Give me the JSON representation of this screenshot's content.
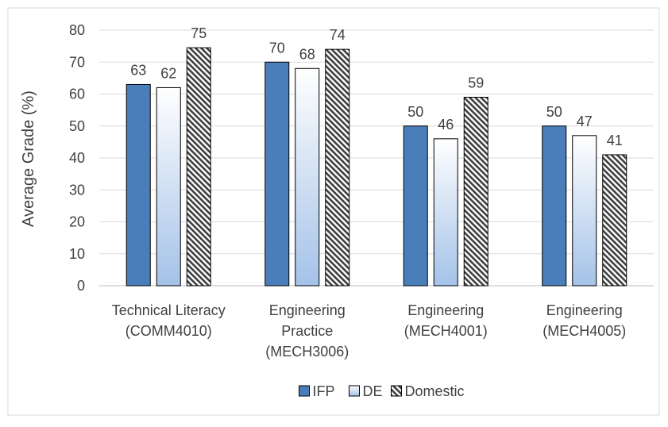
{
  "chart_data": {
    "type": "bar",
    "ylabel": "Average Grade (%)",
    "ylim": [
      0,
      80
    ],
    "yticks": [
      0,
      10,
      20,
      30,
      40,
      50,
      60,
      70,
      80
    ],
    "grid": true,
    "legend_position": "bottom",
    "categories": [
      [
        "Technical Literacy",
        "(COMM4010)"
      ],
      [
        "Engineering",
        "Practice",
        "(MECH3006)"
      ],
      [
        "Engineering",
        "(MECH4001)"
      ],
      [
        "Engineering",
        "(MECH4005)"
      ]
    ],
    "series": [
      {
        "name": "IFP",
        "values": [
          63,
          70,
          50,
          50
        ],
        "data_labels": [
          "63",
          "70",
          "50",
          "50"
        ],
        "style": "solid",
        "color": "#4a7ebb"
      },
      {
        "name": "DE",
        "values": [
          62,
          68,
          46,
          47
        ],
        "data_labels": [
          "62",
          "68",
          "46",
          "47"
        ],
        "style": "gradient",
        "color": "#8db3e2"
      },
      {
        "name": "Domestic",
        "values": [
          74.5,
          74,
          59,
          41
        ],
        "data_labels": [
          "75",
          "74",
          "59",
          "41"
        ],
        "style": "hatched",
        "color": "#404040"
      }
    ]
  }
}
